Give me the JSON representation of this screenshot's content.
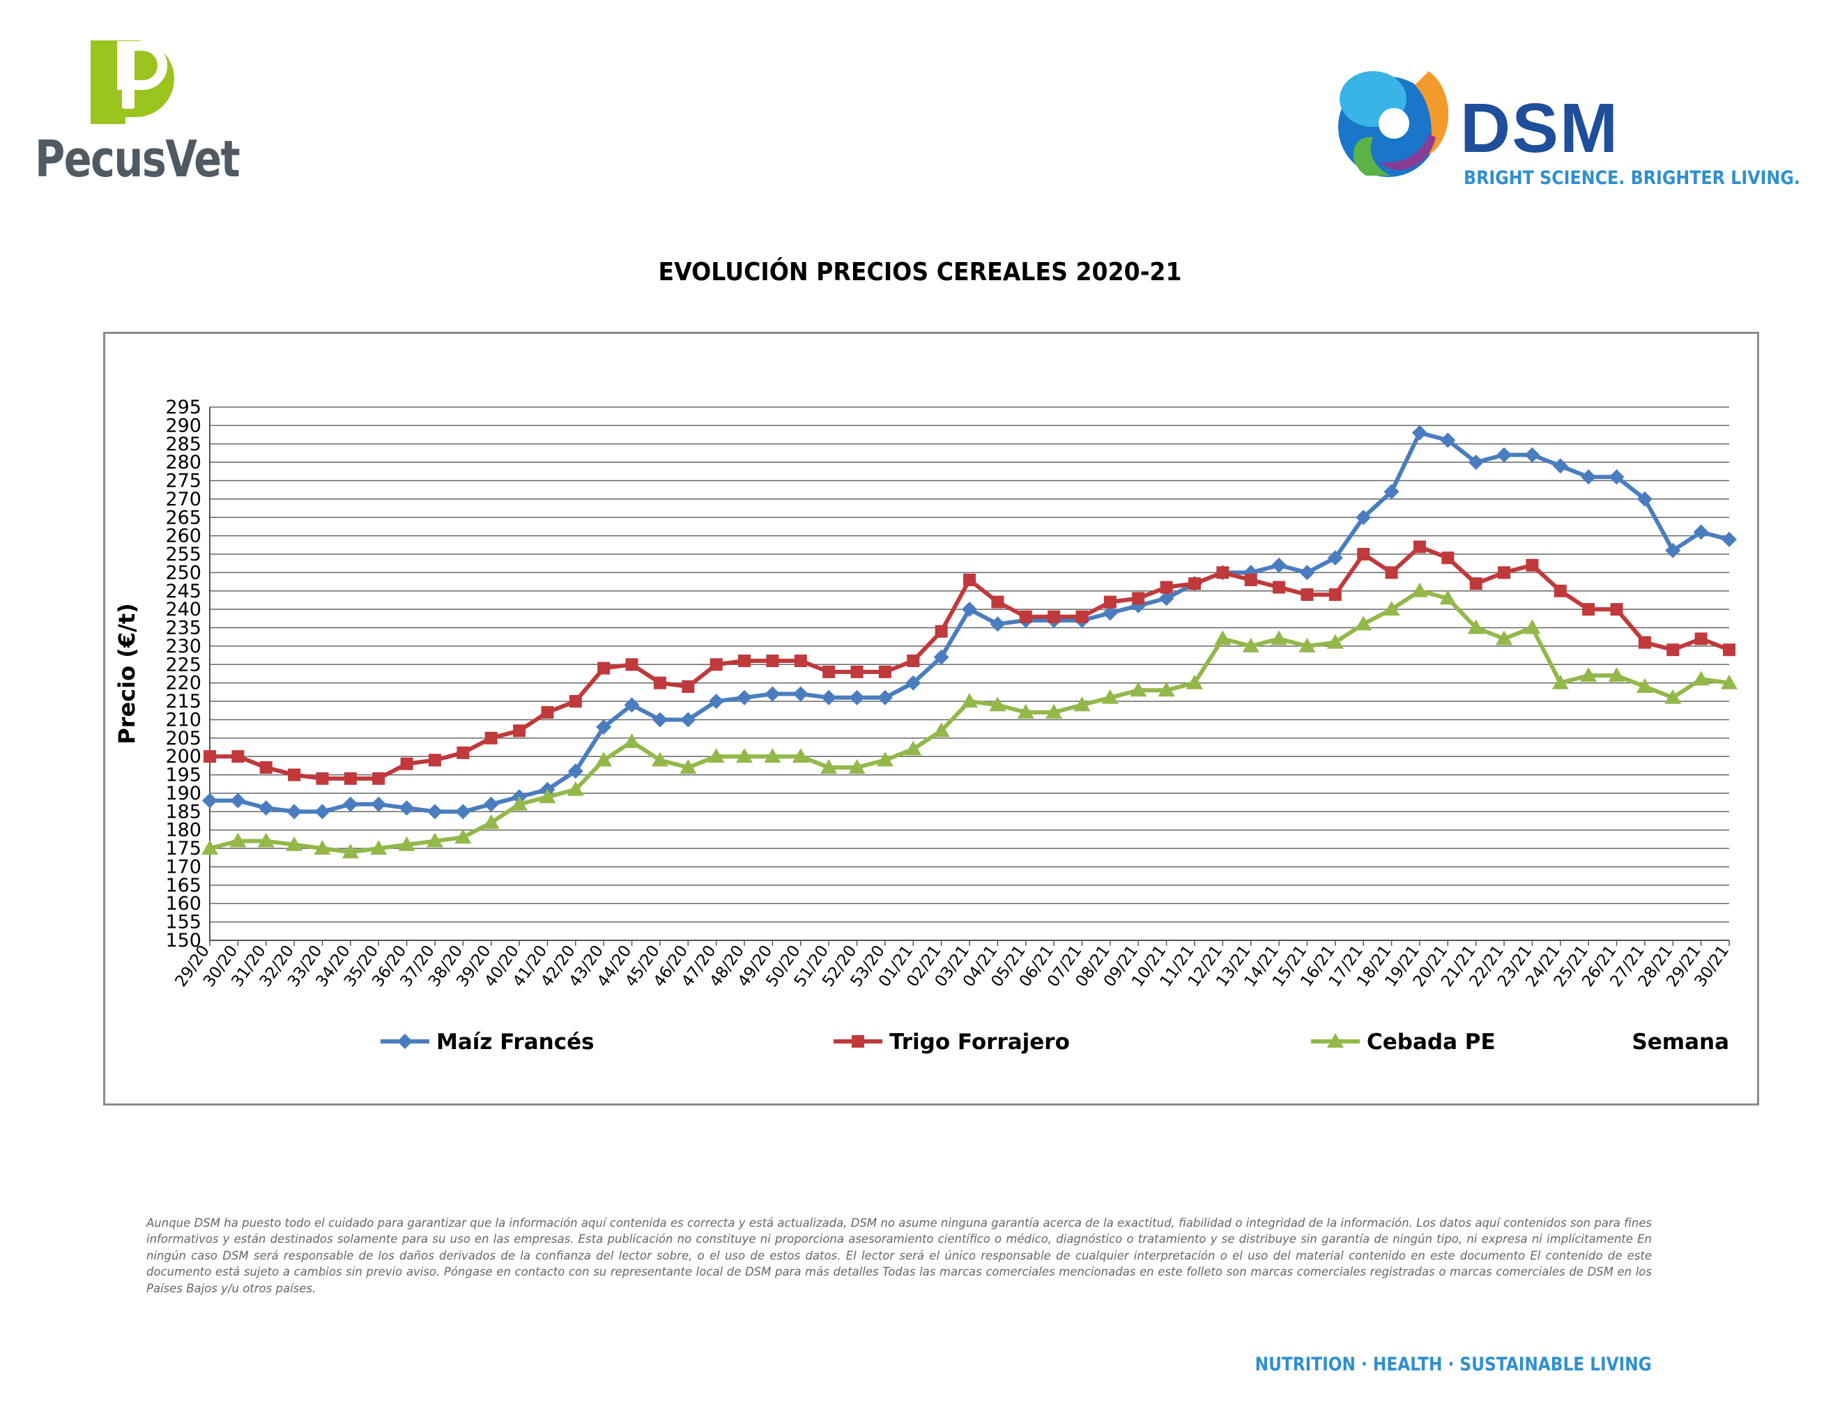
{
  "logos": {
    "pecusvet": {
      "text": "PecusVet",
      "color": "#4f5a63",
      "mark_color": "#9bc41f"
    },
    "dsm": {
      "word": "DSM",
      "tagline": "BRIGHT SCIENCE. BRIGHTER LIVING.",
      "word_color": "#1f4e9a",
      "tagline_color": "#2f8fce"
    }
  },
  "chart_data": {
    "type": "line",
    "title": "EVOLUCIÓN PRECIOS CEREALES 2020-21",
    "ylabel": "Precio (€/t)",
    "xlabel": "Semana",
    "ylim": [
      150,
      295
    ],
    "ytick_step": 5,
    "grid": true,
    "legend_position": "bottom",
    "categories": [
      "29/20",
      "30/20",
      "31/20",
      "32/20",
      "33/20",
      "34/20",
      "35/20",
      "36/20",
      "37/20",
      "38/20",
      "39/20",
      "40/20",
      "41/20",
      "42/20",
      "43/20",
      "44/20",
      "45/20",
      "46/20",
      "47/20",
      "48/20",
      "49/20",
      "50/20",
      "51/20",
      "52/20",
      "53/20",
      "01/21",
      "02/21",
      "03/21",
      "04/21",
      "05/21",
      "06/21",
      "07/21",
      "08/21",
      "09/21",
      "10/21",
      "11/21",
      "12/21",
      "13/21",
      "14/21",
      "15/21",
      "16/21",
      "17/21",
      "18/21",
      "19/21",
      "20/21",
      "21/21",
      "22/21",
      "23/21",
      "24/21",
      "25/21",
      "26/21",
      "27/21",
      "28/21",
      "29/21",
      "30/21"
    ],
    "series": [
      {
        "name": "Maíz Francés",
        "color": "#4a7dbf",
        "marker": "diamond",
        "values": [
          188,
          188,
          186,
          185,
          185,
          187,
          187,
          186,
          185,
          185,
          187,
          189,
          191,
          196,
          208,
          214,
          210,
          210,
          215,
          216,
          217,
          217,
          216,
          216,
          216,
          220,
          227,
          240,
          236,
          237,
          237,
          237,
          239,
          241,
          243,
          247,
          250,
          250,
          252,
          250,
          254,
          265,
          272,
          288,
          286,
          280,
          282,
          282,
          279,
          276,
          276,
          270,
          256,
          261,
          259
        ]
      },
      {
        "name": "Trigo Forrajero",
        "color": "#c0393b",
        "marker": "square",
        "values": [
          200,
          200,
          197,
          195,
          194,
          194,
          194,
          198,
          199,
          201,
          205,
          207,
          212,
          215,
          224,
          225,
          220,
          219,
          225,
          226,
          226,
          226,
          223,
          223,
          223,
          226,
          234,
          248,
          242,
          238,
          238,
          238,
          242,
          243,
          246,
          247,
          250,
          248,
          246,
          244,
          244,
          255,
          250,
          257,
          254,
          247,
          250,
          252,
          245,
          240,
          240,
          231,
          229,
          232,
          229
        ]
      },
      {
        "name": "Cebada PE",
        "color": "#93b84a",
        "marker": "triangle",
        "values": [
          175,
          177,
          177,
          176,
          175,
          174,
          175,
          176,
          177,
          178,
          182,
          187,
          189,
          191,
          199,
          204,
          199,
          197,
          200,
          200,
          200,
          200,
          197,
          197,
          199,
          202,
          207,
          215,
          214,
          212,
          212,
          214,
          216,
          218,
          218,
          220,
          232,
          230,
          232,
          230,
          231,
          236,
          240,
          245,
          243,
          235,
          232,
          235,
          220,
          222,
          222,
          219,
          216,
          221,
          220
        ]
      }
    ]
  },
  "disclaimer": "Aunque DSM ha puesto todo el cuidado para garantizar que la información aquí contenida es correcta y está actualizada, DSM no asume ninguna garantía acerca de la exactitud, fiabilidad o integridad de la información. Los datos aquí contenidos son para fines informativos y están destinados solamente para su uso en las empresas. Esta publicación no constituye ni proporciona asesoramiento científico o médico, diagnóstico o tratamiento y se distribuye sin garantía de ningún tipo, ni expresa ni implícitamente En ningún caso DSM será responsable de los daños derivados de la confianza del lector sobre, o el uso de estos datos. El lector será el único responsable de cualquier interpretación o el uso del material contenido en este documento El contenido de este documento está sujeto a cambios sin previo aviso. Póngase en contacto con su representante local de DSM para más detalles Todas las marcas comerciales mencionadas en este folleto son marcas comerciales registradas o marcas comerciales de DSM en los Países Bajos y/u otros países.",
  "footer": {
    "slogan": "NUTRITION  ·  HEALTH  ·  SUSTAINABLE LIVING",
    "color": "#2f8fce"
  }
}
